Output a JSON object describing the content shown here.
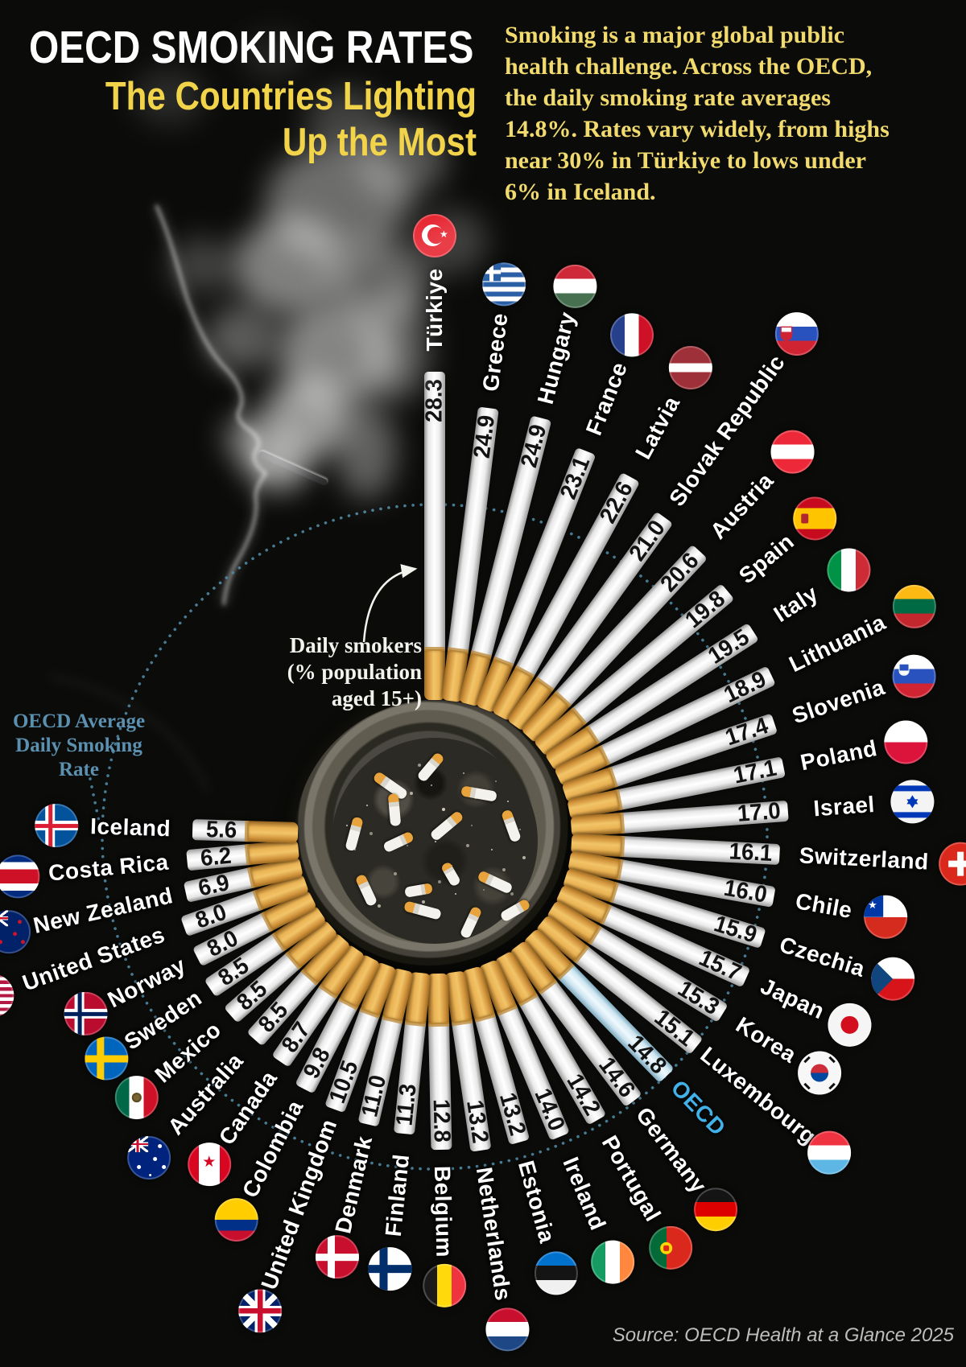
{
  "header": {
    "title": "OECD SMOKING RATES",
    "subtitle_line1": "The Countries Lighting",
    "subtitle_line2": "Up the Most",
    "intro": "Smoking is a major global public health challenge. Across the OECD, the daily smoking rate averages 14.8%. Rates vary widely, from highs near 30% in Türkiye to lows under 6% in Iceland."
  },
  "annotations": {
    "daily_smokers_line1": "Daily smokers",
    "daily_smokers_line2": "(% population",
    "daily_smokers_line3": "aged 15+)",
    "oecd_avg_line1": "OECD Average",
    "oecd_avg_line2": "Daily Smoking",
    "oecd_avg_line3": "Rate"
  },
  "footer": {
    "source": "Source: OECD Health at a Glance 2025"
  },
  "colors": {
    "background": "#0b0b09",
    "title": "#ffffff",
    "subtitle_yellow": "#f2d44a",
    "intro_yellow": "#f1da6e",
    "oecd_highlight_blue": "#41b1e8",
    "avg_label_blue": "#5b90b0",
    "dotted_circle": "#4e87a3",
    "cigarette_paper": "#ffffff",
    "cigarette_filter": "#e8a33d",
    "value_text": "#121212",
    "source_gray": "#bdbdbd"
  },
  "chart_data": {
    "type": "radial-bar",
    "title": "OECD daily smoking rates by country",
    "unit": "% of population aged 15+ smoking daily",
    "oecd_average": 14.8,
    "angle_start_deg": 0,
    "angle_step_deg": 7.15,
    "series": [
      {
        "country": "Türkiye",
        "value": 28.3,
        "flag": "tr"
      },
      {
        "country": "Greece",
        "value": 24.9,
        "flag": "gr"
      },
      {
        "country": "Hungary",
        "value": 24.9,
        "flag": "hu"
      },
      {
        "country": "France",
        "value": 23.1,
        "flag": "fr"
      },
      {
        "country": "Latvia",
        "value": 22.6,
        "flag": "lv"
      },
      {
        "country": "Slovak Republic",
        "value": 21.0,
        "flag": "sk"
      },
      {
        "country": "Austria",
        "value": 20.6,
        "flag": "at"
      },
      {
        "country": "Spain",
        "value": 19.8,
        "flag": "es"
      },
      {
        "country": "Italy",
        "value": 19.5,
        "flag": "it"
      },
      {
        "country": "Lithuania",
        "value": 18.9,
        "flag": "lt"
      },
      {
        "country": "Slovenia",
        "value": 17.4,
        "flag": "si"
      },
      {
        "country": "Poland",
        "value": 17.1,
        "flag": "pl"
      },
      {
        "country": "Israel",
        "value": 17.0,
        "flag": "il"
      },
      {
        "country": "Switzerland",
        "value": 16.1,
        "flag": "ch"
      },
      {
        "country": "Chile",
        "value": 16.0,
        "flag": "cl"
      },
      {
        "country": "Czechia",
        "value": 15.9,
        "flag": "cz"
      },
      {
        "country": "Japan",
        "value": 15.7,
        "flag": "jp"
      },
      {
        "country": "Korea",
        "value": 15.3,
        "flag": "kr"
      },
      {
        "country": "Luxembourg",
        "value": 15.1,
        "flag": "lu"
      },
      {
        "country": "OECD",
        "value": 14.8,
        "flag": null,
        "highlight": true
      },
      {
        "country": "Germany",
        "value": 14.6,
        "flag": "de"
      },
      {
        "country": "Portugal",
        "value": 14.2,
        "flag": "pt"
      },
      {
        "country": "Ireland",
        "value": 14.0,
        "flag": "ie"
      },
      {
        "country": "Estonia",
        "value": 13.2,
        "flag": "ee"
      },
      {
        "country": "Netherlands",
        "value": 13.2,
        "flag": "nl"
      },
      {
        "country": "Belgium",
        "value": 12.8,
        "flag": "be"
      },
      {
        "country": "Finland",
        "value": 11.3,
        "flag": "fi"
      },
      {
        "country": "Denmark",
        "value": 11.0,
        "flag": "dk"
      },
      {
        "country": "United Kingdom",
        "value": 10.5,
        "flag": "gb"
      },
      {
        "country": "Colombia",
        "value": 9.8,
        "flag": "co"
      },
      {
        "country": "Canada",
        "value": 8.7,
        "flag": "ca"
      },
      {
        "country": "Australia",
        "value": 8.5,
        "flag": "au"
      },
      {
        "country": "Mexico",
        "value": 8.5,
        "flag": "mx"
      },
      {
        "country": "Sweden",
        "value": 8.5,
        "flag": "se"
      },
      {
        "country": "Norway",
        "value": 8.0,
        "flag": "no"
      },
      {
        "country": "United States",
        "value": 8.0,
        "flag": "us"
      },
      {
        "country": "New Zealand",
        "value": 6.9,
        "flag": "nz"
      },
      {
        "country": "Costa Rica",
        "value": 6.2,
        "flag": "cr"
      },
      {
        "country": "Iceland",
        "value": 5.6,
        "flag": "is"
      }
    ]
  }
}
